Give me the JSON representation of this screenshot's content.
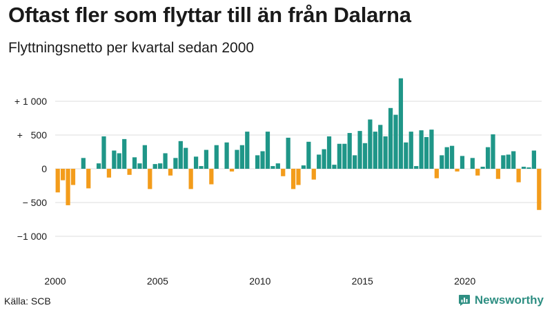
{
  "header": {
    "title": "Oftast fler som flyttar till än från Dalarna",
    "subtitle": "Flyttningsnetto per kvartal sedan 2000"
  },
  "footer": {
    "source": "Källa: SCB",
    "brand": "Newsworthy"
  },
  "colors": {
    "positive": "#1f9688",
    "negative": "#f39c1b",
    "grid": "#dddddd",
    "brand": "#2f8f83"
  },
  "chart_data": {
    "type": "bar",
    "title": "Oftast fler som flyttar till än från Dalarna",
    "subtitle": "Flyttningsnetto per kvartal sedan 2000",
    "xlabel": "",
    "ylabel": "",
    "ylim": [
      -1200,
      1400
    ],
    "grid": true,
    "start_year": 2000,
    "yticks": [
      {
        "value": 1000,
        "label": "+ 1 000"
      },
      {
        "value": 500,
        "label": "+   500"
      },
      {
        "value": 0,
        "label": "0"
      },
      {
        "value": -500,
        "label": "− 500"
      },
      {
        "value": -1000,
        "label": "−1 000"
      }
    ],
    "xticks": [
      {
        "index": 0,
        "label": "2000"
      },
      {
        "index": 20,
        "label": "2005"
      },
      {
        "index": 40,
        "label": "2010"
      },
      {
        "index": 60,
        "label": "2015"
      },
      {
        "index": 80,
        "label": "2020"
      }
    ],
    "values": [
      -350,
      -170,
      -540,
      -240,
      0,
      160,
      -290,
      0,
      80,
      480,
      -130,
      270,
      230,
      440,
      -90,
      170,
      80,
      350,
      -300,
      70,
      80,
      230,
      -100,
      160,
      410,
      310,
      -300,
      180,
      40,
      280,
      -230,
      350,
      0,
      390,
      -40,
      280,
      350,
      550,
      0,
      200,
      260,
      550,
      40,
      80,
      -110,
      460,
      -300,
      -240,
      50,
      400,
      -160,
      210,
      290,
      480,
      60,
      370,
      370,
      530,
      200,
      560,
      380,
      730,
      550,
      650,
      480,
      900,
      800,
      1340,
      390,
      550,
      40,
      570,
      470,
      580,
      -140,
      200,
      320,
      340,
      -40,
      190,
      0,
      160,
      -100,
      30,
      320,
      510,
      -150,
      200,
      210,
      260,
      -200,
      30,
      20,
      270,
      -610
    ]
  }
}
